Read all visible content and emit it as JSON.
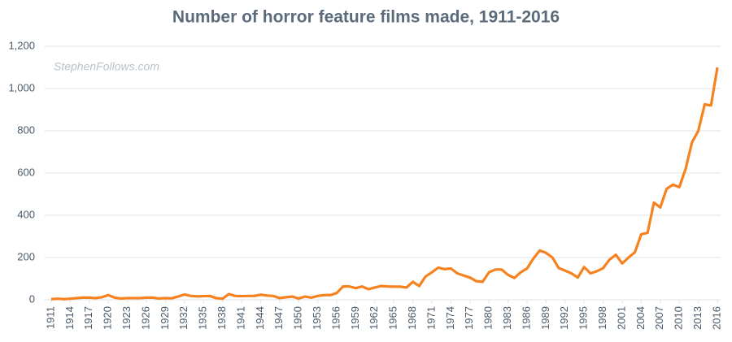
{
  "chart_data": {
    "type": "line",
    "title": "Number of horror feature films made, 1911-2016",
    "annotation": "StephenFollows.com",
    "x": [
      1911,
      1912,
      1913,
      1914,
      1915,
      1916,
      1917,
      1918,
      1919,
      1920,
      1921,
      1922,
      1923,
      1924,
      1925,
      1926,
      1927,
      1928,
      1929,
      1930,
      1931,
      1932,
      1933,
      1934,
      1935,
      1936,
      1937,
      1938,
      1939,
      1940,
      1941,
      1942,
      1943,
      1944,
      1945,
      1946,
      1947,
      1948,
      1949,
      1950,
      1951,
      1952,
      1953,
      1954,
      1955,
      1956,
      1957,
      1958,
      1959,
      1960,
      1961,
      1962,
      1963,
      1964,
      1965,
      1966,
      1967,
      1968,
      1969,
      1970,
      1971,
      1972,
      1973,
      1974,
      1975,
      1976,
      1977,
      1978,
      1979,
      1980,
      1981,
      1982,
      1983,
      1984,
      1985,
      1986,
      1987,
      1988,
      1989,
      1990,
      1991,
      1992,
      1993,
      1994,
      1995,
      1996,
      1997,
      1998,
      1999,
      2000,
      2001,
      2002,
      2003,
      2004,
      2005,
      2006,
      2007,
      2008,
      2009,
      2010,
      2011,
      2012,
      2013,
      2014,
      2015,
      2016
    ],
    "series": [
      {
        "name": "Horror feature films",
        "color": "#f5821f",
        "values": [
          3,
          5,
          3,
          5,
          8,
          10,
          10,
          8,
          12,
          22,
          10,
          6,
          8,
          8,
          8,
          10,
          10,
          6,
          8,
          7,
          15,
          25,
          18,
          16,
          17,
          18,
          8,
          5,
          27,
          18,
          17,
          18,
          18,
          24,
          20,
          18,
          8,
          12,
          15,
          6,
          15,
          10,
          18,
          22,
          22,
          32,
          63,
          63,
          55,
          63,
          50,
          58,
          65,
          63,
          62,
          62,
          58,
          85,
          65,
          110,
          130,
          152,
          145,
          148,
          125,
          115,
          105,
          88,
          85,
          130,
          143,
          143,
          118,
          103,
          130,
          148,
          195,
          233,
          222,
          200,
          150,
          138,
          125,
          105,
          155,
          125,
          135,
          150,
          190,
          213,
          172,
          200,
          225,
          310,
          317,
          460,
          437,
          525,
          545,
          533,
          620,
          745,
          800,
          925,
          920,
          1100
        ]
      }
    ],
    "xlim": [
      1911,
      2016
    ],
    "xticks": [
      1911,
      1914,
      1917,
      1920,
      1923,
      1926,
      1929,
      1932,
      1935,
      1938,
      1941,
      1944,
      1947,
      1950,
      1953,
      1956,
      1959,
      1962,
      1965,
      1968,
      1971,
      1974,
      1977,
      1980,
      1983,
      1986,
      1989,
      1992,
      1995,
      1998,
      2001,
      2004,
      2007,
      2010,
      2013,
      2016
    ],
    "ylim": [
      0,
      1200
    ],
    "yticks": [
      0,
      200,
      400,
      600,
      800,
      {
        "value": 1000,
        "label": "1,000"
      },
      {
        "value": 1200,
        "label": "1,200"
      }
    ],
    "grid": true
  }
}
